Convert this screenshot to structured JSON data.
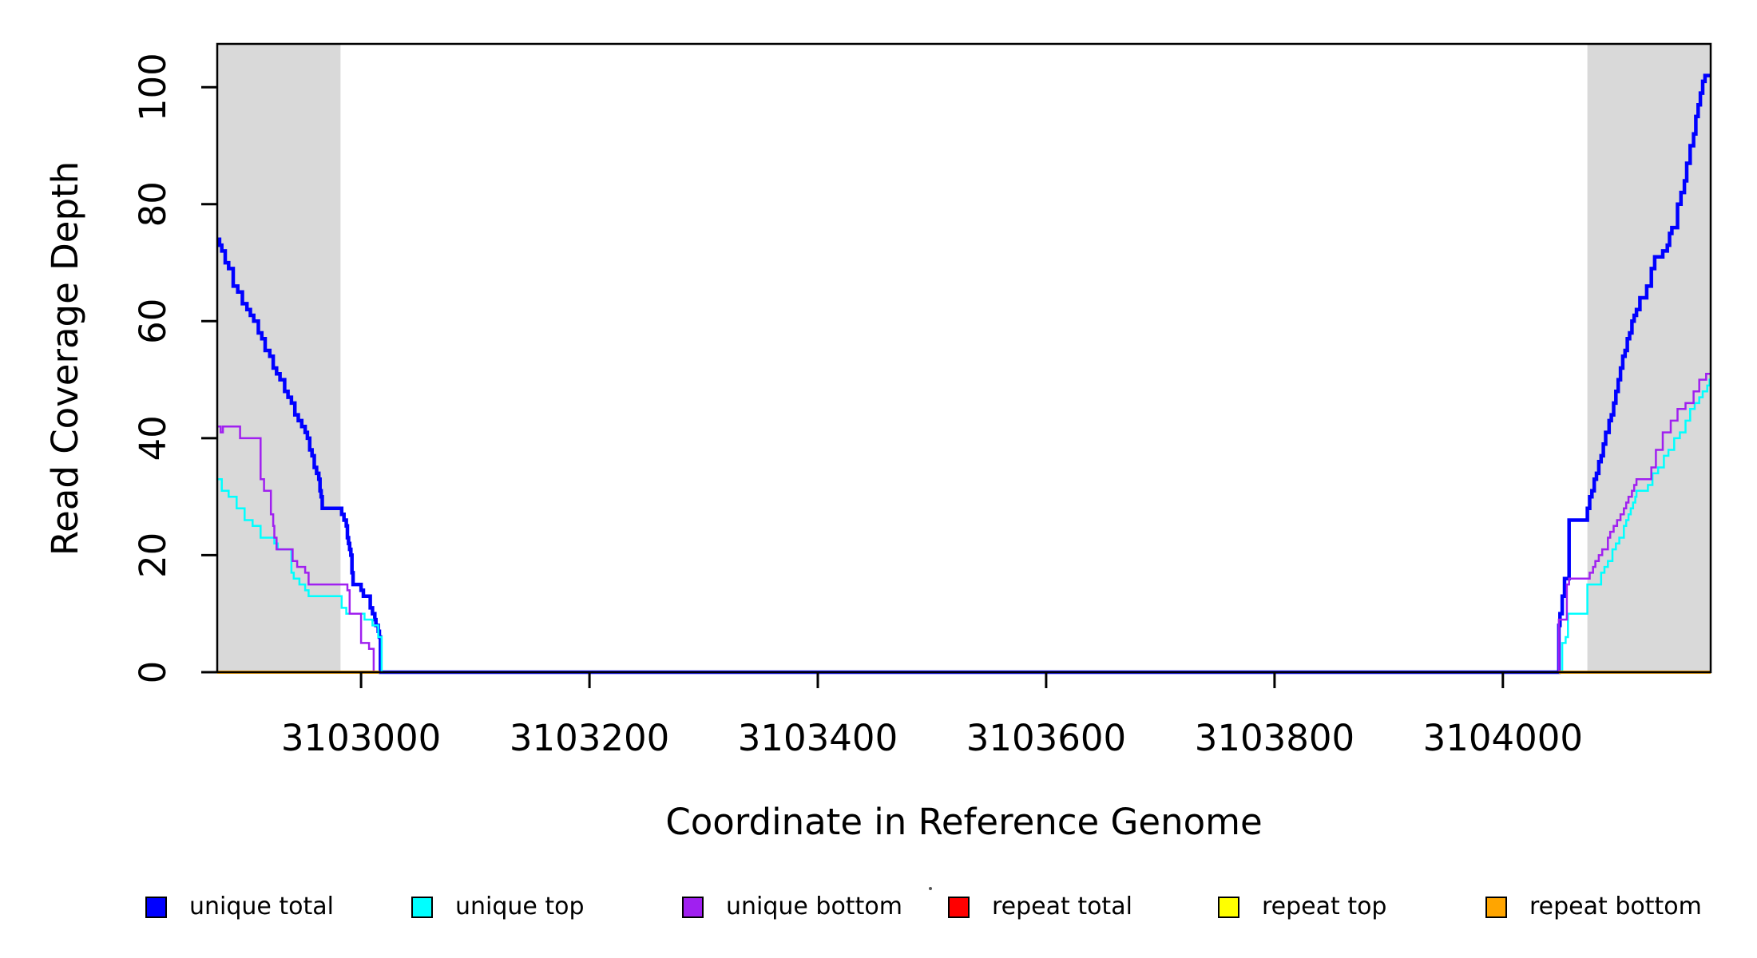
{
  "chart_data": {
    "type": "line",
    "subtype": "step",
    "title": "",
    "xlabel": "Coordinate in Reference Genome",
    "ylabel": "Read Coverage Depth",
    "xlim": [
      3102874,
      3104182
    ],
    "ylim": [
      0,
      107.4
    ],
    "x_ticks": [
      3103000,
      3103200,
      3103400,
      3103600,
      3103800,
      3104000
    ],
    "y_ticks": [
      0,
      20,
      40,
      60,
      80,
      100
    ],
    "grid": false,
    "legend_position": "bottom",
    "background": "#ffffff",
    "band_color": "#D9D9D9",
    "shaded_regions": [
      {
        "x0": 3102874,
        "x1": 3102982
      },
      {
        "x0": 3104074,
        "x1": 3104182
      }
    ],
    "series": [
      {
        "name": "unique total",
        "color": "#0000FF",
        "width": 4.5,
        "segments": [
          [
            [
              3102874,
              74
            ],
            [
              3102876,
              73
            ],
            [
              3102878,
              72
            ],
            [
              3102881,
              70
            ],
            [
              3102884,
              69
            ],
            [
              3102888,
              66
            ],
            [
              3102892,
              65
            ],
            [
              3102896,
              63
            ],
            [
              3102900,
              62
            ],
            [
              3102903,
              61
            ],
            [
              3102906,
              60
            ],
            [
              3102910,
              58
            ],
            [
              3102913,
              57
            ],
            [
              3102916,
              55
            ],
            [
              3102920,
              54
            ],
            [
              3102923,
              52
            ],
            [
              3102926,
              51
            ],
            [
              3102929,
              50
            ],
            [
              3102933,
              48
            ],
            [
              3102936,
              47
            ],
            [
              3102939,
              46
            ],
            [
              3102942,
              44
            ],
            [
              3102945,
              43
            ],
            [
              3102948,
              42
            ],
            [
              3102951,
              41
            ],
            [
              3102953,
              40
            ],
            [
              3102955,
              38
            ],
            [
              3102957,
              37
            ],
            [
              3102959,
              35
            ],
            [
              3102961,
              34
            ],
            [
              3102963,
              33
            ],
            [
              3102964,
              31
            ],
            [
              3102965,
              30
            ],
            [
              3102966,
              28
            ],
            [
              3102983,
              27
            ],
            [
              3102985,
              26
            ],
            [
              3102987,
              25
            ],
            [
              3102988,
              23
            ],
            [
              3102989,
              22
            ],
            [
              3102990,
              21
            ],
            [
              3102991,
              20
            ],
            [
              3102992,
              17
            ],
            [
              3102993,
              15
            ],
            [
              3103000,
              14
            ],
            [
              3103002,
              13
            ],
            [
              3103008,
              11
            ],
            [
              3103010,
              10
            ],
            [
              3103012,
              9
            ],
            [
              3103013,
              8
            ],
            [
              3103015,
              7
            ],
            [
              3103016,
              6
            ],
            [
              3103017,
              0
            ],
            [
              3104049,
              8
            ],
            [
              3104050,
              10
            ],
            [
              3104052,
              13
            ],
            [
              3104054,
              16
            ],
            [
              3104058,
              26
            ],
            [
              3104074,
              28
            ],
            [
              3104076,
              30
            ],
            [
              3104078,
              31
            ],
            [
              3104080,
              33
            ],
            [
              3104082,
              34
            ],
            [
              3104084,
              36
            ],
            [
              3104086,
              37
            ],
            [
              3104088,
              39
            ],
            [
              3104090,
              41
            ],
            [
              3104093,
              43
            ],
            [
              3104095,
              44
            ],
            [
              3104097,
              46
            ],
            [
              3104099,
              48
            ],
            [
              3104101,
              50
            ],
            [
              3104103,
              52
            ],
            [
              3104105,
              54
            ],
            [
              3104107,
              55
            ],
            [
              3104109,
              57
            ],
            [
              3104111,
              58
            ],
            [
              3104113,
              60
            ],
            [
              3104115,
              61
            ],
            [
              3104117,
              62
            ],
            [
              3104120,
              64
            ],
            [
              3104126,
              66
            ],
            [
              3104130,
              69
            ],
            [
              3104133,
              71
            ],
            [
              3104140,
              72
            ],
            [
              3104144,
              73
            ],
            [
              3104146,
              75
            ],
            [
              3104148,
              76
            ],
            [
              3104153,
              80
            ],
            [
              3104156,
              82
            ],
            [
              3104159,
              84
            ],
            [
              3104161,
              87
            ],
            [
              3104164,
              90
            ],
            [
              3104167,
              92
            ],
            [
              3104169,
              95
            ],
            [
              3104171,
              97
            ],
            [
              3104173,
              99
            ],
            [
              3104175,
              101
            ],
            [
              3104177,
              102
            ],
            [
              3104182,
              102
            ]
          ]
        ]
      },
      {
        "name": "unique top",
        "color": "#00FFFF",
        "width": 2.5,
        "segments": [
          [
            [
              3102874,
              33
            ],
            [
              3102878,
              31
            ],
            [
              3102884,
              30
            ],
            [
              3102891,
              28
            ],
            [
              3102898,
              26
            ],
            [
              3102905,
              25
            ],
            [
              3102912,
              23
            ],
            [
              3102924,
              22
            ],
            [
              3102927,
              21
            ],
            [
              3102939,
              17
            ],
            [
              3102941,
              16
            ],
            [
              3102946,
              15
            ],
            [
              3102951,
              14
            ],
            [
              3102954,
              13
            ],
            [
              3102983,
              11
            ],
            [
              3102987,
              10
            ],
            [
              3103003,
              9
            ],
            [
              3103010,
              8
            ],
            [
              3103015,
              6
            ],
            [
              3103018,
              0
            ],
            [
              3104052,
              5
            ],
            [
              3104055,
              6
            ],
            [
              3104057,
              10
            ],
            [
              3104074,
              15
            ],
            [
              3104086,
              17
            ],
            [
              3104089,
              18
            ],
            [
              3104092,
              19
            ],
            [
              3104096,
              21
            ],
            [
              3104099,
              22
            ],
            [
              3104102,
              23
            ],
            [
              3104106,
              25
            ],
            [
              3104108,
              26
            ],
            [
              3104110,
              27
            ],
            [
              3104112,
              28
            ],
            [
              3104114,
              29
            ],
            [
              3104116,
              30
            ],
            [
              3104117,
              31
            ],
            [
              3104127,
              32
            ],
            [
              3104131,
              34
            ],
            [
              3104136,
              35
            ],
            [
              3104141,
              37
            ],
            [
              3104145,
              38
            ],
            [
              3104150,
              40
            ],
            [
              3104155,
              41
            ],
            [
              3104160,
              43
            ],
            [
              3104164,
              45
            ],
            [
              3104168,
              46
            ],
            [
              3104172,
              47
            ],
            [
              3104175,
              48
            ],
            [
              3104179,
              49
            ],
            [
              3104181,
              50
            ],
            [
              3104182,
              50
            ]
          ]
        ]
      },
      {
        "name": "unique bottom",
        "color": "#A020F0",
        "width": 2.5,
        "segments": [
          [
            [
              3102874,
              42
            ],
            [
              3102877,
              41
            ],
            [
              3102879,
              42
            ],
            [
              3102894,
              40
            ],
            [
              3102912,
              33
            ],
            [
              3102915,
              31
            ],
            [
              3102921,
              27
            ],
            [
              3102923,
              25
            ],
            [
              3102924,
              23
            ],
            [
              3102926,
              21
            ],
            [
              3102940,
              19
            ],
            [
              3102944,
              18
            ],
            [
              3102951,
              17
            ],
            [
              3102954,
              15
            ],
            [
              3102988,
              14
            ],
            [
              3102990,
              10
            ],
            [
              3103000,
              5
            ],
            [
              3103007,
              4
            ],
            [
              3103011,
              0
            ],
            [
              3104049,
              9
            ],
            [
              3104056,
              15
            ],
            [
              3104058,
              16
            ],
            [
              3104076,
              17
            ],
            [
              3104079,
              18
            ],
            [
              3104081,
              19
            ],
            [
              3104084,
              20
            ],
            [
              3104087,
              21
            ],
            [
              3104092,
              23
            ],
            [
              3104094,
              24
            ],
            [
              3104097,
              25
            ],
            [
              3104100,
              26
            ],
            [
              3104103,
              27
            ],
            [
              3104106,
              28
            ],
            [
              3104108,
              29
            ],
            [
              3104110,
              30
            ],
            [
              3104113,
              31
            ],
            [
              3104115,
              32
            ],
            [
              3104117,
              33
            ],
            [
              3104130,
              35
            ],
            [
              3104134,
              38
            ],
            [
              3104140,
              41
            ],
            [
              3104147,
              43
            ],
            [
              3104153,
              45
            ],
            [
              3104160,
              46
            ],
            [
              3104167,
              48
            ],
            [
              3104172,
              50
            ],
            [
              3104178,
              51
            ],
            [
              3104182,
              51
            ]
          ]
        ]
      },
      {
        "name": "repeat total",
        "color": "#FF0000",
        "width": 3,
        "segments": [
          [
            [
              3102874,
              0
            ],
            [
              3103016,
              0
            ]
          ],
          [
            [
              3104049,
              0
            ],
            [
              3104182,
              0
            ]
          ]
        ]
      },
      {
        "name": "repeat top",
        "color": "#FFFF00",
        "width": 3,
        "segments": [
          [
            [
              3102874,
              0
            ],
            [
              3103016,
              0
            ]
          ],
          [
            [
              3104049,
              0
            ],
            [
              3104182,
              0
            ]
          ]
        ]
      },
      {
        "name": "repeat bottom",
        "color": "#FFA500",
        "width": 4,
        "segments": [
          [
            [
              3102874,
              0
            ],
            [
              3103016,
              0
            ]
          ],
          [
            [
              3104049,
              0
            ],
            [
              3104182,
              0
            ]
          ]
        ]
      }
    ]
  },
  "legend": {
    "items": [
      {
        "label": "unique total",
        "color": "#0000FF"
      },
      {
        "label": "unique top",
        "color": "#00FFFF"
      },
      {
        "label": "unique bottom",
        "color": "#A020F0"
      },
      {
        "label": "repeat total",
        "color": "#FF0000"
      },
      {
        "label": "repeat top",
        "color": "#FFFF00"
      },
      {
        "label": "repeat bottom",
        "color": "#FFA500"
      }
    ]
  }
}
